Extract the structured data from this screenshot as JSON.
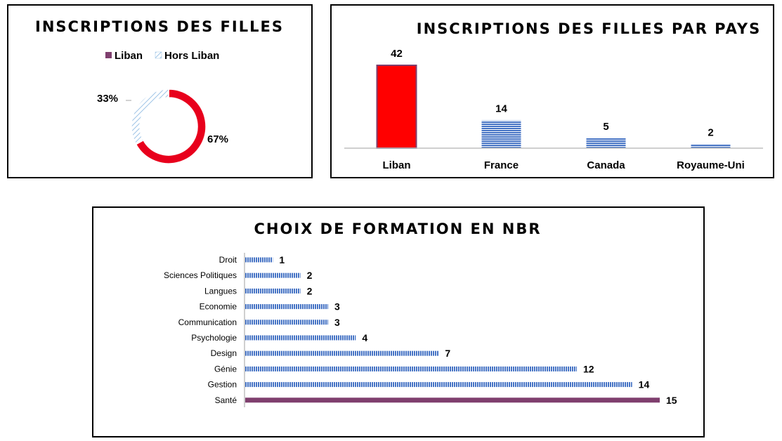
{
  "colors": {
    "liban": "#e8001c",
    "hors_liban": "#9dc3e6",
    "stripe_blue": "#4472c4",
    "sante": "#7f3f6e",
    "legend_liban": "#7f3f6e"
  },
  "chart_data": [
    {
      "type": "pie",
      "variant": "donut",
      "title": "INSCRIPTIONS DES FILLES",
      "legend": [
        "Liban",
        "Hors Liban"
      ],
      "legend_position": "top",
      "slices": [
        {
          "name": "Liban",
          "value": 67,
          "label": "67%"
        },
        {
          "name": "Hors Liban",
          "value": 33,
          "label": "33%"
        }
      ]
    },
    {
      "type": "bar",
      "orientation": "vertical",
      "title": "INSCRIPTIONS DES FILLES PAR PAYS",
      "categories": [
        "Liban",
        "France",
        "Canada",
        "Royaume-Uni"
      ],
      "values": [
        42,
        14,
        5,
        2
      ],
      "ylim": [
        0,
        42
      ],
      "grid": false
    },
    {
      "type": "bar",
      "orientation": "horizontal",
      "title": "CHOIX DE FORMATION EN NBR",
      "categories": [
        "Droit",
        "Sciences Politiques",
        "Langues",
        "Economie",
        "Communication",
        "Psychologie",
        "Design",
        "Génie",
        "Gestion",
        "Santé"
      ],
      "values": [
        1,
        2,
        2,
        3,
        3,
        4,
        7,
        12,
        14,
        15
      ],
      "xlim": [
        0,
        15
      ],
      "grid": false
    }
  ]
}
